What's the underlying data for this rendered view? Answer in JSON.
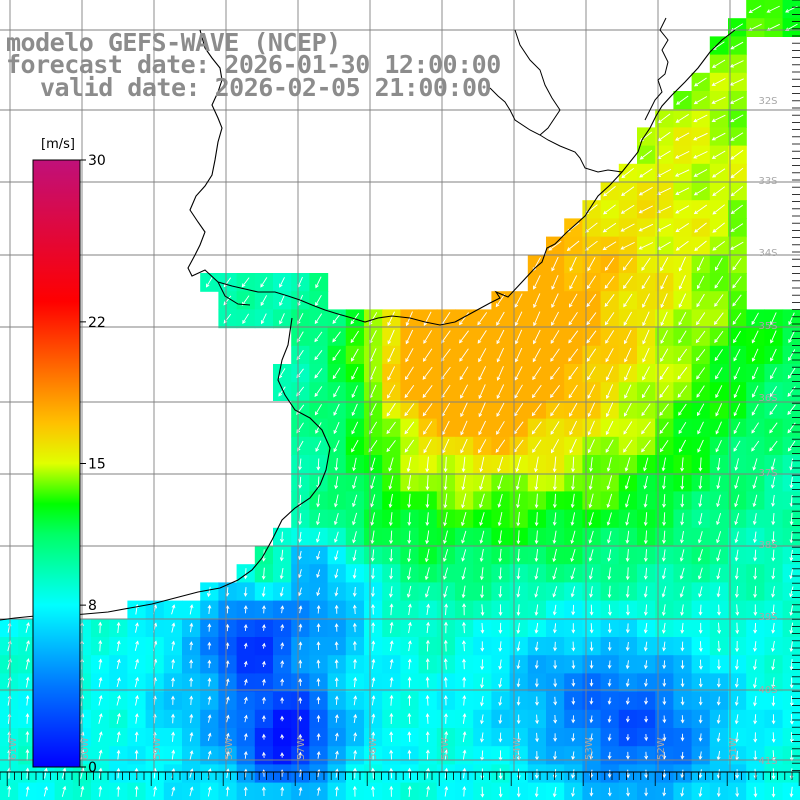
{
  "title": {
    "line1": "modelo GEFS-WAVE (NCEP)",
    "line2": "forecast date: 2026-01-30 12:00:00",
    "line3": "valid date: 2026-02-05 21:00:00"
  },
  "colorbar": {
    "unit": "[m/s]",
    "ticks": [
      "30",
      "22",
      "15",
      "8",
      "0"
    ],
    "tick_values": [
      30,
      22,
      15,
      8,
      0
    ],
    "range": [
      0,
      30
    ],
    "stops": [
      {
        "v": 0,
        "c": "#0000ff"
      },
      {
        "v": 4,
        "c": "#0077ff"
      },
      {
        "v": 8,
        "c": "#00ffff"
      },
      {
        "v": 11.5,
        "c": "#00ff66"
      },
      {
        "v": 13,
        "c": "#00ff00"
      },
      {
        "v": 15,
        "c": "#e0ff00"
      },
      {
        "v": 17,
        "c": "#ffc000"
      },
      {
        "v": 20,
        "c": "#ff6000"
      },
      {
        "v": 23,
        "c": "#ff0000"
      },
      {
        "v": 30,
        "c": "#c0107a"
      }
    ]
  },
  "latitude_labels": [
    "32S",
    "33S",
    "34S",
    "35S",
    "36S",
    "37S",
    "38S",
    "39S",
    "40S",
    "41S"
  ],
  "longitude_labels": [
    "61W",
    "60W",
    "59W",
    "58W",
    "57W",
    "56W",
    "55W",
    "54W",
    "53W",
    "52W",
    "51W"
  ],
  "colors": {
    "land": "#ffffff",
    "coast": "#000000",
    "grid": "#808080",
    "title": "#8c8c8c",
    "arrow": "#ffffff"
  }
}
